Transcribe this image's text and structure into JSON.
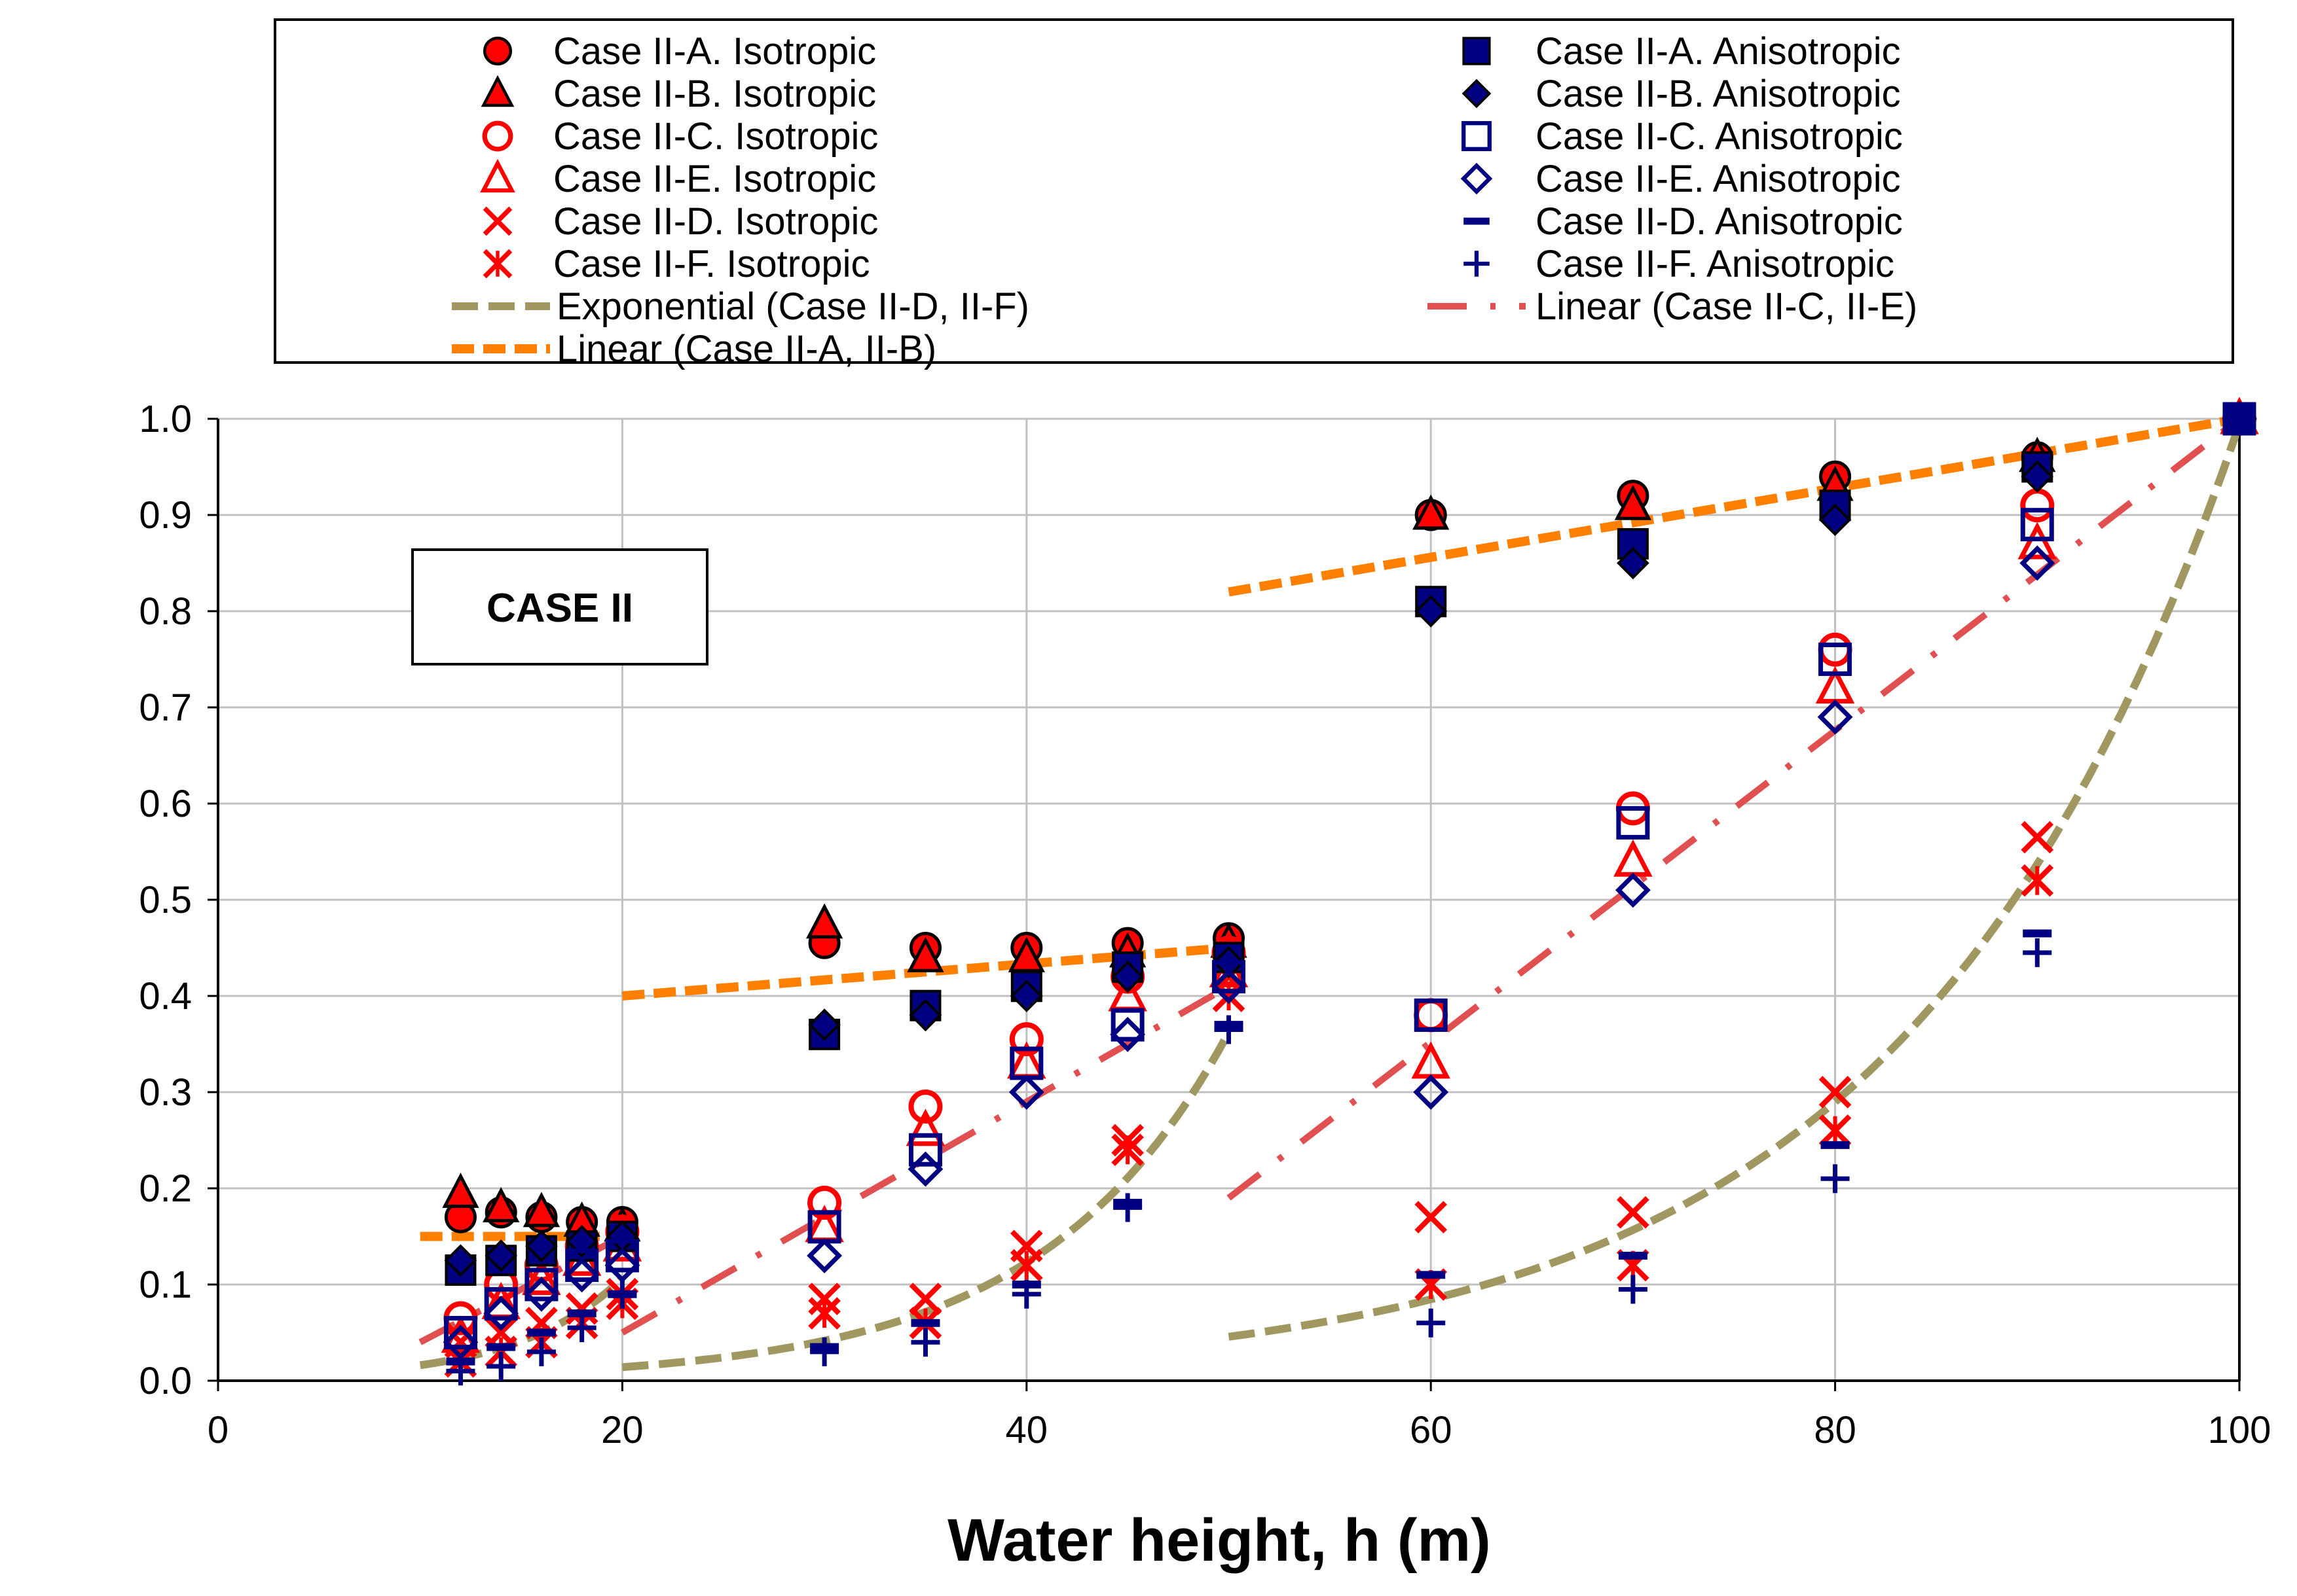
{
  "chart_data": {
    "type": "scatter",
    "title": "",
    "xlabel": "Water height, h (m)",
    "ylabel": "",
    "xlim": [
      0,
      100
    ],
    "ylim": [
      0.0,
      1.0
    ],
    "x_ticks": [
      "0",
      "20",
      "40",
      "60",
      "80",
      "100"
    ],
    "y_ticks": [
      "0.0",
      "0.1",
      "0.2",
      "0.3",
      "0.4",
      "0.5",
      "0.6",
      "0.7",
      "0.8",
      "0.9",
      "1.0"
    ],
    "grid": true,
    "legend_position": "top",
    "annotation": "CASE II",
    "series": [
      {
        "name": "Case II-A. Isotropic",
        "marker": "circle-filled",
        "color": "#ff0000",
        "x": [
          12,
          14,
          16,
          18,
          20,
          30,
          35,
          40,
          45,
          50,
          60,
          70,
          80,
          90,
          100
        ],
        "y": [
          0.17,
          0.175,
          0.17,
          0.165,
          0.165,
          0.455,
          0.45,
          0.45,
          0.455,
          0.46,
          0.9,
          0.92,
          0.94,
          0.96,
          1.0
        ]
      },
      {
        "name": "Case II-B. Isotropic",
        "marker": "triangle-filled",
        "color": "#ff0000",
        "x": [
          12,
          14,
          16,
          18,
          20,
          30,
          35,
          40,
          45,
          50,
          60,
          70,
          80,
          90,
          100
        ],
        "y": [
          0.195,
          0.18,
          0.175,
          0.165,
          0.16,
          0.475,
          0.44,
          0.44,
          0.445,
          0.455,
          0.9,
          0.91,
          0.93,
          0.96,
          1.0
        ]
      },
      {
        "name": "Case II-C. Isotropic",
        "marker": "circle-open",
        "color": "#ff0000",
        "x": [
          12,
          14,
          16,
          18,
          20,
          30,
          35,
          40,
          45,
          50,
          60,
          70,
          80,
          90,
          100
        ],
        "y": [
          0.065,
          0.1,
          0.12,
          0.14,
          0.155,
          0.185,
          0.285,
          0.355,
          0.42,
          0.445,
          0.38,
          0.595,
          0.76,
          0.91,
          1.0
        ]
      },
      {
        "name": "Case II-E. Isotropic",
        "marker": "triangle-open",
        "color": "#ff0000",
        "x": [
          12,
          14,
          16,
          18,
          20,
          30,
          35,
          40,
          45,
          50,
          60,
          70,
          80,
          90,
          100
        ],
        "y": [
          0.045,
          0.08,
          0.105,
          0.125,
          0.14,
          0.16,
          0.26,
          0.33,
          0.4,
          0.425,
          0.33,
          0.54,
          0.72,
          0.87,
          1.0
        ]
      },
      {
        "name": "Case II-D. Isotropic",
        "marker": "x",
        "color": "#ff0000",
        "x": [
          12,
          14,
          16,
          18,
          20,
          30,
          35,
          40,
          45,
          50,
          60,
          70,
          80,
          90,
          100
        ],
        "y": [
          0.04,
          0.05,
          0.06,
          0.075,
          0.09,
          0.085,
          0.085,
          0.14,
          0.25,
          0.42,
          0.17,
          0.175,
          0.3,
          0.565,
          1.0
        ]
      },
      {
        "name": "Case II-F. Isotropic",
        "marker": "asterisk-x",
        "color": "#ff0000",
        "x": [
          12,
          14,
          16,
          18,
          20,
          30,
          35,
          40,
          45,
          50,
          60,
          70,
          80,
          90,
          100
        ],
        "y": [
          0.02,
          0.03,
          0.04,
          0.06,
          0.08,
          0.07,
          0.06,
          0.12,
          0.24,
          0.4,
          0.1,
          0.12,
          0.26,
          0.52,
          1.0
        ]
      },
      {
        "name": "Case II-A. Anisotropic",
        "marker": "square-filled",
        "color": "#000080",
        "x": [
          12,
          14,
          16,
          18,
          20,
          30,
          35,
          40,
          45,
          50,
          60,
          70,
          80,
          90,
          100
        ],
        "y": [
          0.115,
          0.125,
          0.135,
          0.14,
          0.15,
          0.36,
          0.39,
          0.41,
          0.43,
          0.44,
          0.81,
          0.87,
          0.91,
          0.95,
          1.0
        ]
      },
      {
        "name": "Case II-B. Anisotropic",
        "marker": "diamond-filled",
        "color": "#000080",
        "x": [
          12,
          14,
          16,
          18,
          20,
          30,
          35,
          40,
          45,
          50,
          60,
          70,
          80,
          90,
          100
        ],
        "y": [
          0.125,
          0.13,
          0.14,
          0.145,
          0.15,
          0.37,
          0.38,
          0.4,
          0.42,
          0.435,
          0.8,
          0.85,
          0.895,
          0.94,
          1.0
        ]
      },
      {
        "name": "Case II-C. Anisotropic",
        "marker": "square-open",
        "color": "#000080",
        "x": [
          12,
          14,
          16,
          18,
          20,
          30,
          35,
          40,
          45,
          50,
          60,
          70,
          80,
          90,
          100
        ],
        "y": [
          0.05,
          0.08,
          0.1,
          0.12,
          0.13,
          0.16,
          0.24,
          0.33,
          0.37,
          0.42,
          0.38,
          0.58,
          0.75,
          0.89,
          1.0
        ]
      },
      {
        "name": "Case II-E. Anisotropic",
        "marker": "diamond-open",
        "color": "#000080",
        "x": [
          12,
          14,
          16,
          18,
          20,
          30,
          35,
          40,
          45,
          50,
          60,
          70,
          80,
          90,
          100
        ],
        "y": [
          0.04,
          0.07,
          0.09,
          0.11,
          0.12,
          0.13,
          0.22,
          0.3,
          0.36,
          0.41,
          0.3,
          0.51,
          0.69,
          0.85,
          1.0
        ]
      },
      {
        "name": "Case II-D. Anisotropic",
        "marker": "dash",
        "color": "#000080",
        "x": [
          12,
          14,
          16,
          18,
          20,
          30,
          35,
          40,
          45,
          50,
          60,
          70,
          80,
          90,
          100
        ],
        "y": [
          0.02,
          0.035,
          0.05,
          0.07,
          0.09,
          0.035,
          0.06,
          0.1,
          0.185,
          0.37,
          0.11,
          0.13,
          0.245,
          0.465,
          1.0
        ]
      },
      {
        "name": "Case II-F. Anisotropic",
        "marker": "plus",
        "color": "#000080",
        "x": [
          12,
          14,
          16,
          18,
          20,
          30,
          35,
          40,
          45,
          50,
          60,
          70,
          80,
          90,
          100
        ],
        "y": [
          0.01,
          0.015,
          0.03,
          0.055,
          0.09,
          0.03,
          0.04,
          0.09,
          0.18,
          0.365,
          0.06,
          0.095,
          0.21,
          0.445,
          1.0
        ]
      }
    ],
    "trendlines": [
      {
        "name": "Exponential (Case II-D, II-F)",
        "style": "long-dash",
        "color": "#a09860",
        "segments": [
          {
            "from": 10,
            "to": 20,
            "a": 0.00244,
            "b": 0.1887
          },
          {
            "from": 20,
            "to": 50,
            "a": 0.00162,
            "b": 0.1082
          },
          {
            "from": 50,
            "to": 100,
            "a": 0.0021,
            "b": 0.0616
          }
        ]
      },
      {
        "name": "Linear (Case II-A, II-B)",
        "style": "dash",
        "color": "#ff7f00",
        "segments": [
          {
            "x": [
              10,
              20
            ],
            "y": [
              0.15,
              0.15
            ]
          },
          {
            "x": [
              20,
              50
            ],
            "y": [
              0.4,
              0.45
            ]
          },
          {
            "x": [
              50,
              100
            ],
            "y": [
              0.82,
              1.0
            ]
          }
        ]
      },
      {
        "name": "Linear (Case II-C, II-E)",
        "style": "dash-dot",
        "color": "#e05050",
        "segments": [
          {
            "x": [
              10,
              20
            ],
            "y": [
              0.04,
              0.15
            ]
          },
          {
            "x": [
              20,
              50
            ],
            "y": [
              0.05,
              0.41
            ]
          },
          {
            "x": [
              50,
              100
            ],
            "y": [
              0.19,
              1.0
            ]
          }
        ]
      }
    ]
  }
}
